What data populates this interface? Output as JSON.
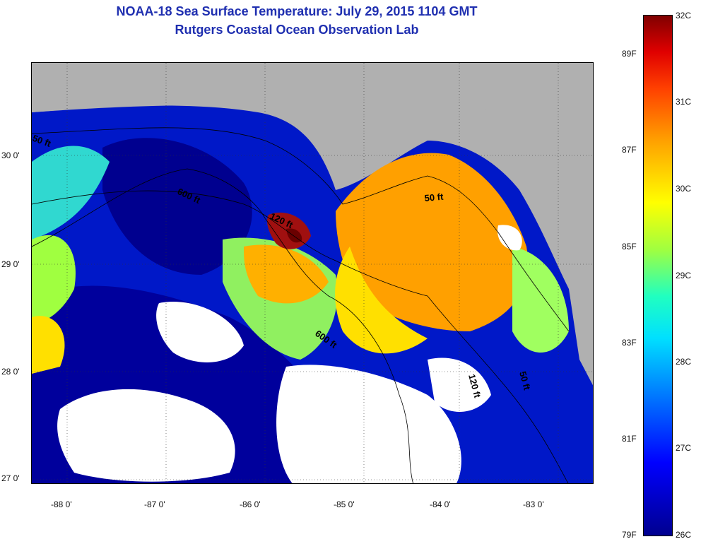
{
  "header": {
    "title": "NOAA-18 Sea Surface Temperature:  July 29, 2015 1104 GMT",
    "subtitle": "Rutgers Coastal Ocean Observation Lab"
  },
  "map": {
    "y_axis_labels": [
      "30 0'",
      "29 0'",
      "28 0'",
      "27 0'"
    ],
    "x_axis_labels": [
      "-88 0'",
      "-87 0'",
      "-86 0'",
      "-85 0'",
      "-84 0'",
      "-83 0'"
    ],
    "contour_labels": [
      "50 ft",
      "600 ft",
      "120 ft",
      "50 ft",
      "600 ft",
      "120 ft",
      "50 ft"
    ],
    "colors": {
      "land": "#b0b0b0",
      "cloud": "#ffffff",
      "cold": "#00008f",
      "warm": "#ffa000"
    }
  },
  "colorbar": {
    "celsius_labels": [
      "32C",
      "31C",
      "30C",
      "29C",
      "28C",
      "27C",
      "26C"
    ],
    "fahrenheit_labels": [
      "89F",
      "87F",
      "85F",
      "83F",
      "81F",
      "79F"
    ]
  }
}
